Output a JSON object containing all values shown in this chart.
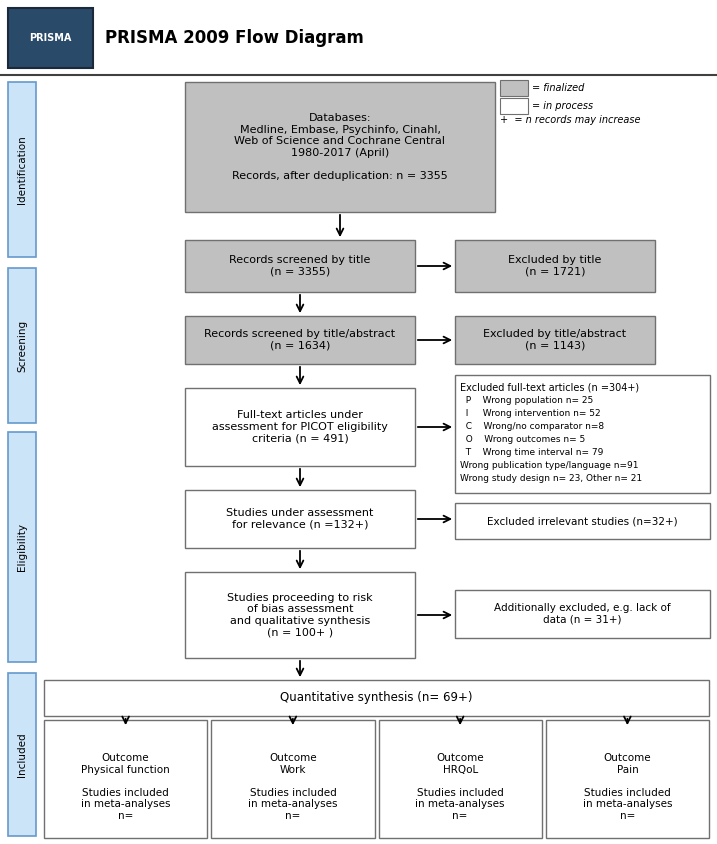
{
  "title": "PRISMA 2009 Flow Diagram",
  "bg_color": "#ffffff",
  "gray_fill": "#c0c0c0",
  "white_fill": "#ffffff",
  "light_blue_fill": "#cce4f7",
  "edge_color": "#707070",
  "side_labels": [
    "Identification",
    "Screening",
    "Eligibility",
    "Included"
  ],
  "legend_gray": "= finalized",
  "legend_white": "= in process",
  "legend_plus": "+  = n records may increase",
  "db_text": "Databases:\nMedline, Embase, Psychinfo, Cinahl,\nWeb of Science and Cochrane Central\n1980-2017 (April)\n\nRecords, after deduplication: n = 3355",
  "st_text": "Records screened by title\n(n = 3355)",
  "et_text": "Excluded by title\n(n = 1721)",
  "sa_text": "Records screened by title/abstract\n(n = 1634)",
  "ea_text": "Excluded by title/abstract\n(n = 1143)",
  "ft_text": "Full-text articles under\nassessment for PICOT eligibility\ncriteria (n = 491)",
  "ef_lines": [
    "Excluded full-text articles (n =304+)",
    "  P    Wrong population n= 25",
    "  I     Wrong intervention n= 52",
    "  C    Wrong/no comparator n=8",
    "  O    Wrong outcomes n= 5",
    "  T    Wrong time interval n= 79",
    "Wrong publication type/language n=91",
    "Wrong study design n= 23, Other n= 21"
  ],
  "rel_text": "Studies under assessment\nfor relevance (n =132+)",
  "ei_text": "Excluded irrelevant studies (n=32+)",
  "rb_text": "Studies proceeding to risk\nof bias assessment\nand qualitative synthesis\n(n = 100+ )",
  "ae_text": "Additionally excluded, e.g. lack of\ndata (n = 31+)",
  "qs_text": "Quantitative synthesis (n= 69+)",
  "out_labels": [
    "Outcome\nPhysical function\n\nStudies included\nin meta-analyses\nn=",
    "Outcome\nWork\n\nStudies included\nin meta-analyses\nn=",
    "Outcome\nHRQoL\n\nStudies included\nin meta-analyses\nn=",
    "Outcome\nPain\n\nStudies included\nin meta-analyses\nn="
  ]
}
